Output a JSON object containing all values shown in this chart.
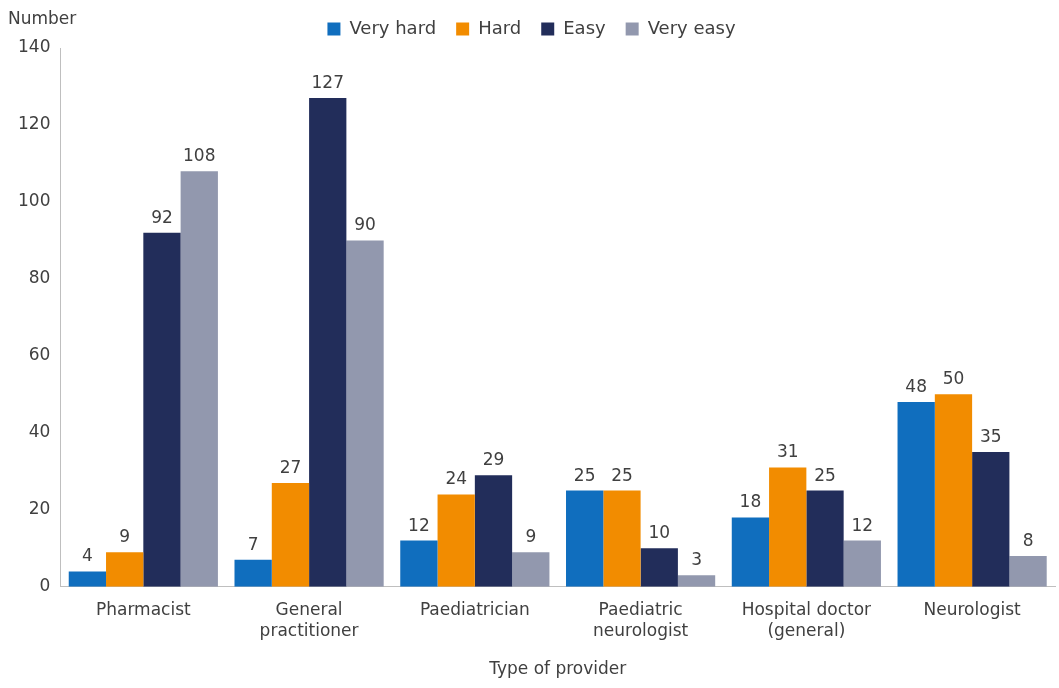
{
  "chart_data": {
    "type": "bar",
    "ylabel": "Number",
    "xlabel": "Type of provider",
    "categories": [
      "Pharmacist",
      "General practitioner",
      "Paediatrician",
      "Paediatric neurologist",
      "Hospital doctor (general)",
      "Neurologist"
    ],
    "series": [
      {
        "name": "Very hard",
        "color": "#106ebe",
        "values": [
          4,
          7,
          12,
          25,
          18,
          48
        ]
      },
      {
        "name": "Hard",
        "color": "#f28c00",
        "values": [
          9,
          27,
          24,
          25,
          31,
          50
        ]
      },
      {
        "name": "Easy",
        "color": "#222d5a",
        "values": [
          92,
          127,
          29,
          10,
          25,
          35
        ]
      },
      {
        "name": "Very easy",
        "color": "#9298ae",
        "values": [
          108,
          90,
          9,
          3,
          12,
          8
        ]
      }
    ],
    "ylim": [
      0,
      140
    ],
    "yticks": [
      0,
      20,
      40,
      60,
      80,
      100,
      120,
      140
    ],
    "grid": false,
    "legend": "top",
    "data_labels": true
  }
}
